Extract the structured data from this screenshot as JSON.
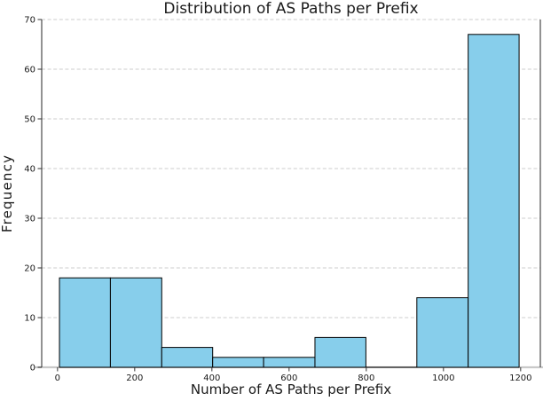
{
  "chart_data": {
    "type": "bar",
    "subtype": "histogram",
    "title": "Distribution of AS Paths per Prefix",
    "xlabel": "Number of AS Paths per Prefix",
    "ylabel": "Frequency",
    "bin_edges": [
      5,
      137,
      270,
      402,
      534,
      667,
      799,
      931,
      1064,
      1196
    ],
    "frequencies": [
      18,
      18,
      4,
      2,
      2,
      6,
      0,
      14,
      67
    ],
    "x_ticks": [
      0,
      200,
      400,
      600,
      800,
      1000,
      1200
    ],
    "y_ticks": [
      0,
      10,
      20,
      30,
      40,
      50,
      60,
      70
    ],
    "xlim": [
      -41,
      1251
    ],
    "ylim": [
      0,
      70
    ],
    "grid": "y-axis only, dashed, light gray",
    "legend": null,
    "colors": {
      "bar_fill": "#87CEEB",
      "bar_edge": "#000000",
      "gridline": "#cccccc",
      "bottom_spine": "#c9c9c9",
      "side_spine": "#262626",
      "tick_mark": "#333333",
      "text": "#1a1a1a",
      "background": "#ffffff"
    }
  }
}
